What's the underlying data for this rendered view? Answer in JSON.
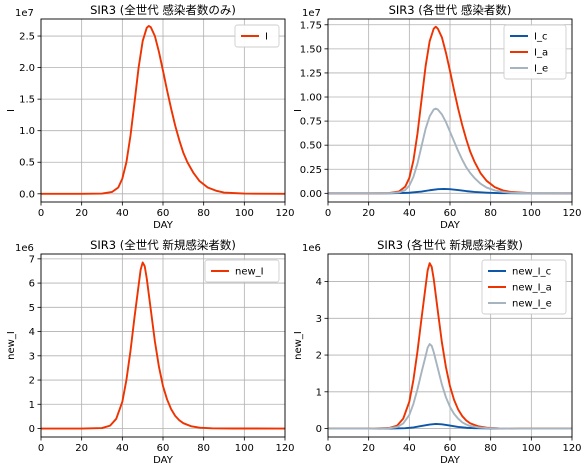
{
  "colors": {
    "I_c": "#0d56a8",
    "I_a": "#ee3300",
    "I_e": "#a6b4bf",
    "grid": "#b0b0b0"
  },
  "chart_data": [
    {
      "type": "line",
      "title": "SIR3 (全世代 感染者数のみ)",
      "xlabel": "DAY",
      "ylabel": "I",
      "multiplier": "1e7",
      "xlim": [
        0,
        120
      ],
      "ylim": [
        -0.13,
        2.77
      ],
      "xticks": [
        0,
        20,
        40,
        60,
        80,
        100,
        120
      ],
      "yticks": [
        0.0,
        0.5,
        1.0,
        1.5,
        2.0,
        2.5
      ],
      "ytick_labels": [
        "0.0",
        "0.5",
        "1.0",
        "1.5",
        "2.0",
        "2.5"
      ],
      "grid": true,
      "legend": "top-right",
      "series": [
        {
          "name": "I",
          "color_key": "I_a",
          "points": [
            [
              0,
              0
            ],
            [
              20,
              0
            ],
            [
              30,
              0.004
            ],
            [
              35,
              0.03
            ],
            [
              38,
              0.1
            ],
            [
              40,
              0.24
            ],
            [
              42,
              0.5
            ],
            [
              44,
              0.92
            ],
            [
              46,
              1.45
            ],
            [
              48,
              2.0
            ],
            [
              50,
              2.42
            ],
            [
              52,
              2.63
            ],
            [
              53,
              2.66
            ],
            [
              54,
              2.64
            ],
            [
              56,
              2.5
            ],
            [
              58,
              2.25
            ],
            [
              60,
              1.95
            ],
            [
              62,
              1.64
            ],
            [
              64,
              1.35
            ],
            [
              66,
              1.08
            ],
            [
              68,
              0.85
            ],
            [
              70,
              0.65
            ],
            [
              72,
              0.5
            ],
            [
              75,
              0.33
            ],
            [
              78,
              0.2
            ],
            [
              82,
              0.1
            ],
            [
              86,
              0.05
            ],
            [
              90,
              0.02
            ],
            [
              100,
              0.003
            ],
            [
              120,
              0
            ]
          ]
        }
      ]
    },
    {
      "type": "line",
      "title": "SIR3 (各世代 感染者数)",
      "xlabel": "DAY",
      "ylabel": "I",
      "multiplier": "1e7",
      "xlim": [
        0,
        120
      ],
      "ylim": [
        -0.09,
        1.81
      ],
      "xticks": [
        0,
        20,
        40,
        60,
        80,
        100,
        120
      ],
      "yticks": [
        0.0,
        0.25,
        0.5,
        0.75,
        1.0,
        1.25,
        1.5,
        1.75
      ],
      "ytick_labels": [
        "0.00",
        "0.25",
        "0.50",
        "0.75",
        "1.00",
        "1.25",
        "1.50",
        "1.75"
      ],
      "grid": true,
      "legend": "top-right",
      "series": [
        {
          "name": "I_c",
          "color_key": "I_c",
          "points": [
            [
              0,
              0
            ],
            [
              30,
              0
            ],
            [
              40,
              0.006
            ],
            [
              46,
              0.018
            ],
            [
              50,
              0.032
            ],
            [
              54,
              0.043
            ],
            [
              57,
              0.046
            ],
            [
              60,
              0.043
            ],
            [
              64,
              0.034
            ],
            [
              68,
              0.023
            ],
            [
              72,
              0.014
            ],
            [
              78,
              0.007
            ],
            [
              85,
              0.002
            ],
            [
              95,
              0
            ],
            [
              120,
              0
            ]
          ]
        },
        {
          "name": "I_a",
          "color_key": "I_a",
          "points": [
            [
              0,
              0
            ],
            [
              20,
              0
            ],
            [
              30,
              0.003
            ],
            [
              35,
              0.02
            ],
            [
              38,
              0.07
            ],
            [
              40,
              0.16
            ],
            [
              42,
              0.34
            ],
            [
              44,
              0.62
            ],
            [
              46,
              0.97
            ],
            [
              48,
              1.32
            ],
            [
              50,
              1.58
            ],
            [
              52,
              1.71
            ],
            [
              53,
              1.73
            ],
            [
              54,
              1.71
            ],
            [
              56,
              1.62
            ],
            [
              58,
              1.46
            ],
            [
              60,
              1.27
            ],
            [
              62,
              1.07
            ],
            [
              64,
              0.88
            ],
            [
              66,
              0.71
            ],
            [
              68,
              0.56
            ],
            [
              70,
              0.43
            ],
            [
              72,
              0.33
            ],
            [
              75,
              0.21
            ],
            [
              78,
              0.13
            ],
            [
              82,
              0.065
            ],
            [
              86,
              0.03
            ],
            [
              90,
              0.014
            ],
            [
              100,
              0.002
            ],
            [
              120,
              0
            ]
          ]
        },
        {
          "name": "I_e",
          "color_key": "I_e",
          "points": [
            [
              0,
              0
            ],
            [
              20,
              0
            ],
            [
              30,
              0.002
            ],
            [
              35,
              0.01
            ],
            [
              38,
              0.035
            ],
            [
              40,
              0.08
            ],
            [
              42,
              0.17
            ],
            [
              44,
              0.31
            ],
            [
              46,
              0.49
            ],
            [
              48,
              0.67
            ],
            [
              50,
              0.8
            ],
            [
              52,
              0.87
            ],
            [
              53,
              0.88
            ],
            [
              54,
              0.87
            ],
            [
              56,
              0.82
            ],
            [
              58,
              0.74
            ],
            [
              60,
              0.64
            ],
            [
              62,
              0.54
            ],
            [
              64,
              0.44
            ],
            [
              66,
              0.35
            ],
            [
              68,
              0.27
            ],
            [
              70,
              0.21
            ],
            [
              72,
              0.16
            ],
            [
              75,
              0.1
            ],
            [
              78,
              0.06
            ],
            [
              82,
              0.03
            ],
            [
              86,
              0.014
            ],
            [
              90,
              0.006
            ],
            [
              100,
              0.001
            ],
            [
              120,
              0
            ]
          ]
        }
      ]
    },
    {
      "type": "line",
      "title": "SIR3 (全世代 新規感染者数)",
      "xlabel": "DAY",
      "ylabel": "new_I",
      "multiplier": "1e6",
      "xlim": [
        0,
        120
      ],
      "ylim": [
        -0.35,
        7.2
      ],
      "xticks": [
        0,
        20,
        40,
        60,
        80,
        100,
        120
      ],
      "yticks": [
        0,
        1,
        2,
        3,
        4,
        5,
        6,
        7
      ],
      "ytick_labels": [
        "0",
        "1",
        "2",
        "3",
        "4",
        "5",
        "6",
        "7"
      ],
      "grid": true,
      "legend": "top-right",
      "series": [
        {
          "name": "new_I",
          "color_key": "I_a",
          "points": [
            [
              0,
              0
            ],
            [
              20,
              0
            ],
            [
              30,
              0.02
            ],
            [
              34,
              0.12
            ],
            [
              37,
              0.4
            ],
            [
              40,
              1.1
            ],
            [
              42,
              2.0
            ],
            [
              44,
              3.2
            ],
            [
              46,
              4.6
            ],
            [
              48,
              5.9
            ],
            [
              49,
              6.55
            ],
            [
              50,
              6.85
            ],
            [
              51,
              6.7
            ],
            [
              52,
              6.2
            ],
            [
              54,
              4.9
            ],
            [
              56,
              3.6
            ],
            [
              58,
              2.55
            ],
            [
              60,
              1.75
            ],
            [
              62,
              1.2
            ],
            [
              64,
              0.8
            ],
            [
              66,
              0.52
            ],
            [
              68,
              0.34
            ],
            [
              70,
              0.22
            ],
            [
              74,
              0.09
            ],
            [
              78,
              0.035
            ],
            [
              84,
              0.01
            ],
            [
              95,
              0.001
            ],
            [
              120,
              0
            ]
          ]
        }
      ]
    },
    {
      "type": "line",
      "title": "SIR3 (各世代 新規感染者数)",
      "xlabel": "DAY",
      "ylabel": "new_I",
      "multiplier": "1e6",
      "xlim": [
        0,
        120
      ],
      "ylim": [
        -0.23,
        4.75
      ],
      "xticks": [
        0,
        20,
        40,
        60,
        80,
        100,
        120
      ],
      "yticks": [
        0,
        1,
        2,
        3,
        4
      ],
      "ytick_labels": [
        "0",
        "1",
        "2",
        "3",
        "4"
      ],
      "grid": true,
      "legend": "top-right",
      "series": [
        {
          "name": "new_I_c",
          "color_key": "I_c",
          "points": [
            [
              0,
              0
            ],
            [
              30,
              0
            ],
            [
              38,
              0.01
            ],
            [
              42,
              0.03
            ],
            [
              46,
              0.07
            ],
            [
              50,
              0.11
            ],
            [
              53,
              0.125
            ],
            [
              56,
              0.115
            ],
            [
              60,
              0.08
            ],
            [
              64,
              0.045
            ],
            [
              68,
              0.022
            ],
            [
              72,
              0.01
            ],
            [
              80,
              0.002
            ],
            [
              120,
              0
            ]
          ]
        },
        {
          "name": "new_I_a",
          "color_key": "I_a",
          "points": [
            [
              0,
              0
            ],
            [
              20,
              0
            ],
            [
              30,
              0.015
            ],
            [
              34,
              0.08
            ],
            [
              37,
              0.27
            ],
            [
              40,
              0.73
            ],
            [
              42,
              1.32
            ],
            [
              44,
              2.1
            ],
            [
              46,
              3.0
            ],
            [
              48,
              3.87
            ],
            [
              49,
              4.3
            ],
            [
              50,
              4.5
            ],
            [
              51,
              4.4
            ],
            [
              52,
              4.07
            ],
            [
              54,
              3.2
            ],
            [
              56,
              2.35
            ],
            [
              58,
              1.67
            ],
            [
              60,
              1.15
            ],
            [
              62,
              0.78
            ],
            [
              64,
              0.52
            ],
            [
              66,
              0.34
            ],
            [
              68,
              0.22
            ],
            [
              70,
              0.14
            ],
            [
              74,
              0.06
            ],
            [
              78,
              0.023
            ],
            [
              84,
              0.006
            ],
            [
              95,
              0.001
            ],
            [
              120,
              0
            ]
          ]
        },
        {
          "name": "new_I_e",
          "color_key": "I_e",
          "points": [
            [
              0,
              0
            ],
            [
              20,
              0
            ],
            [
              30,
              0.008
            ],
            [
              34,
              0.04
            ],
            [
              37,
              0.14
            ],
            [
              40,
              0.37
            ],
            [
              42,
              0.67
            ],
            [
              44,
              1.07
            ],
            [
              46,
              1.53
            ],
            [
              48,
              1.97
            ],
            [
              49,
              2.2
            ],
            [
              50,
              2.3
            ],
            [
              51,
              2.25
            ],
            [
              52,
              2.08
            ],
            [
              54,
              1.64
            ],
            [
              56,
              1.2
            ],
            [
              58,
              0.85
            ],
            [
              60,
              0.59
            ],
            [
              62,
              0.4
            ],
            [
              64,
              0.27
            ],
            [
              66,
              0.17
            ],
            [
              68,
              0.11
            ],
            [
              70,
              0.07
            ],
            [
              74,
              0.03
            ],
            [
              78,
              0.012
            ],
            [
              84,
              0.003
            ],
            [
              95,
              0
            ],
            [
              120,
              0
            ]
          ]
        }
      ]
    }
  ]
}
